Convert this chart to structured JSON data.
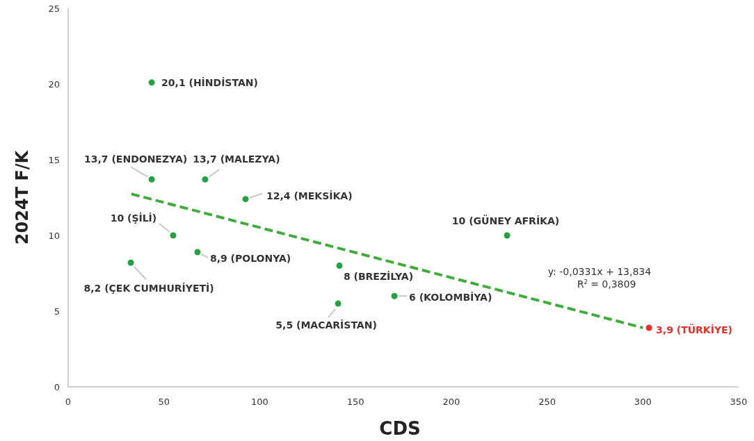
{
  "chart_data": {
    "type": "scatter",
    "xlabel": "CDS",
    "ylabel": "2024T F/K",
    "xlim": [
      0,
      350
    ],
    "xticks": [
      0,
      50,
      100,
      150,
      200,
      250,
      300,
      350
    ],
    "ylim": [
      0,
      25
    ],
    "yticks": [
      0,
      5,
      10,
      15,
      20,
      25
    ],
    "grid": false,
    "annotations": [
      "y: -0,0331x + 13,834",
      "R$^{2}$ = 0,3809"
    ],
    "series": [
      {
        "marker": "circle",
        "x": [
          43.6,
          43.6,
          71.5,
          92.6,
          54.8,
          67.5,
          32.7,
          141.6,
          140.9,
          170.3,
          229.1,
          303.2
        ],
        "values": [
          20.1,
          13.7,
          13.7,
          12.4,
          10,
          8.9,
          8.2,
          8,
          5.5,
          6,
          10,
          3.9
        ],
        "colors": [
          "#22a243",
          "#22a243",
          "#22a243",
          "#22a243",
          "#22a243",
          "#22a243",
          "#22a243",
          "#22a243",
          "#22a243",
          "#22a243",
          "#22a243",
          "#e8302a"
        ],
        "value_labels": [
          "20,1 (HİNDİSTAN)",
          "13,7 (ENDONEZYA)",
          "13,7 (MALEZYA)",
          "12,4 (MEKSİKA)",
          "10 (ŞİLİ)",
          "8,9 (POLONYA)",
          "8,2 (ÇEK CUMHURİYETİ)",
          "8 (BREZİLYA)",
          "5,5 (MACARİSTAN)",
          "6 (KOLOMBİYA)",
          "10 (GÜNEY AFRİKA)",
          "3,9 (TÜRKİYE)"
        ]
      },
      {
        "type": "line",
        "marker": "none",
        "line_style": "dashed",
        "color": "#3fad3a",
        "x": [
          33,
          300
        ],
        "values": [
          12.74,
          3.9
        ]
      }
    ]
  }
}
